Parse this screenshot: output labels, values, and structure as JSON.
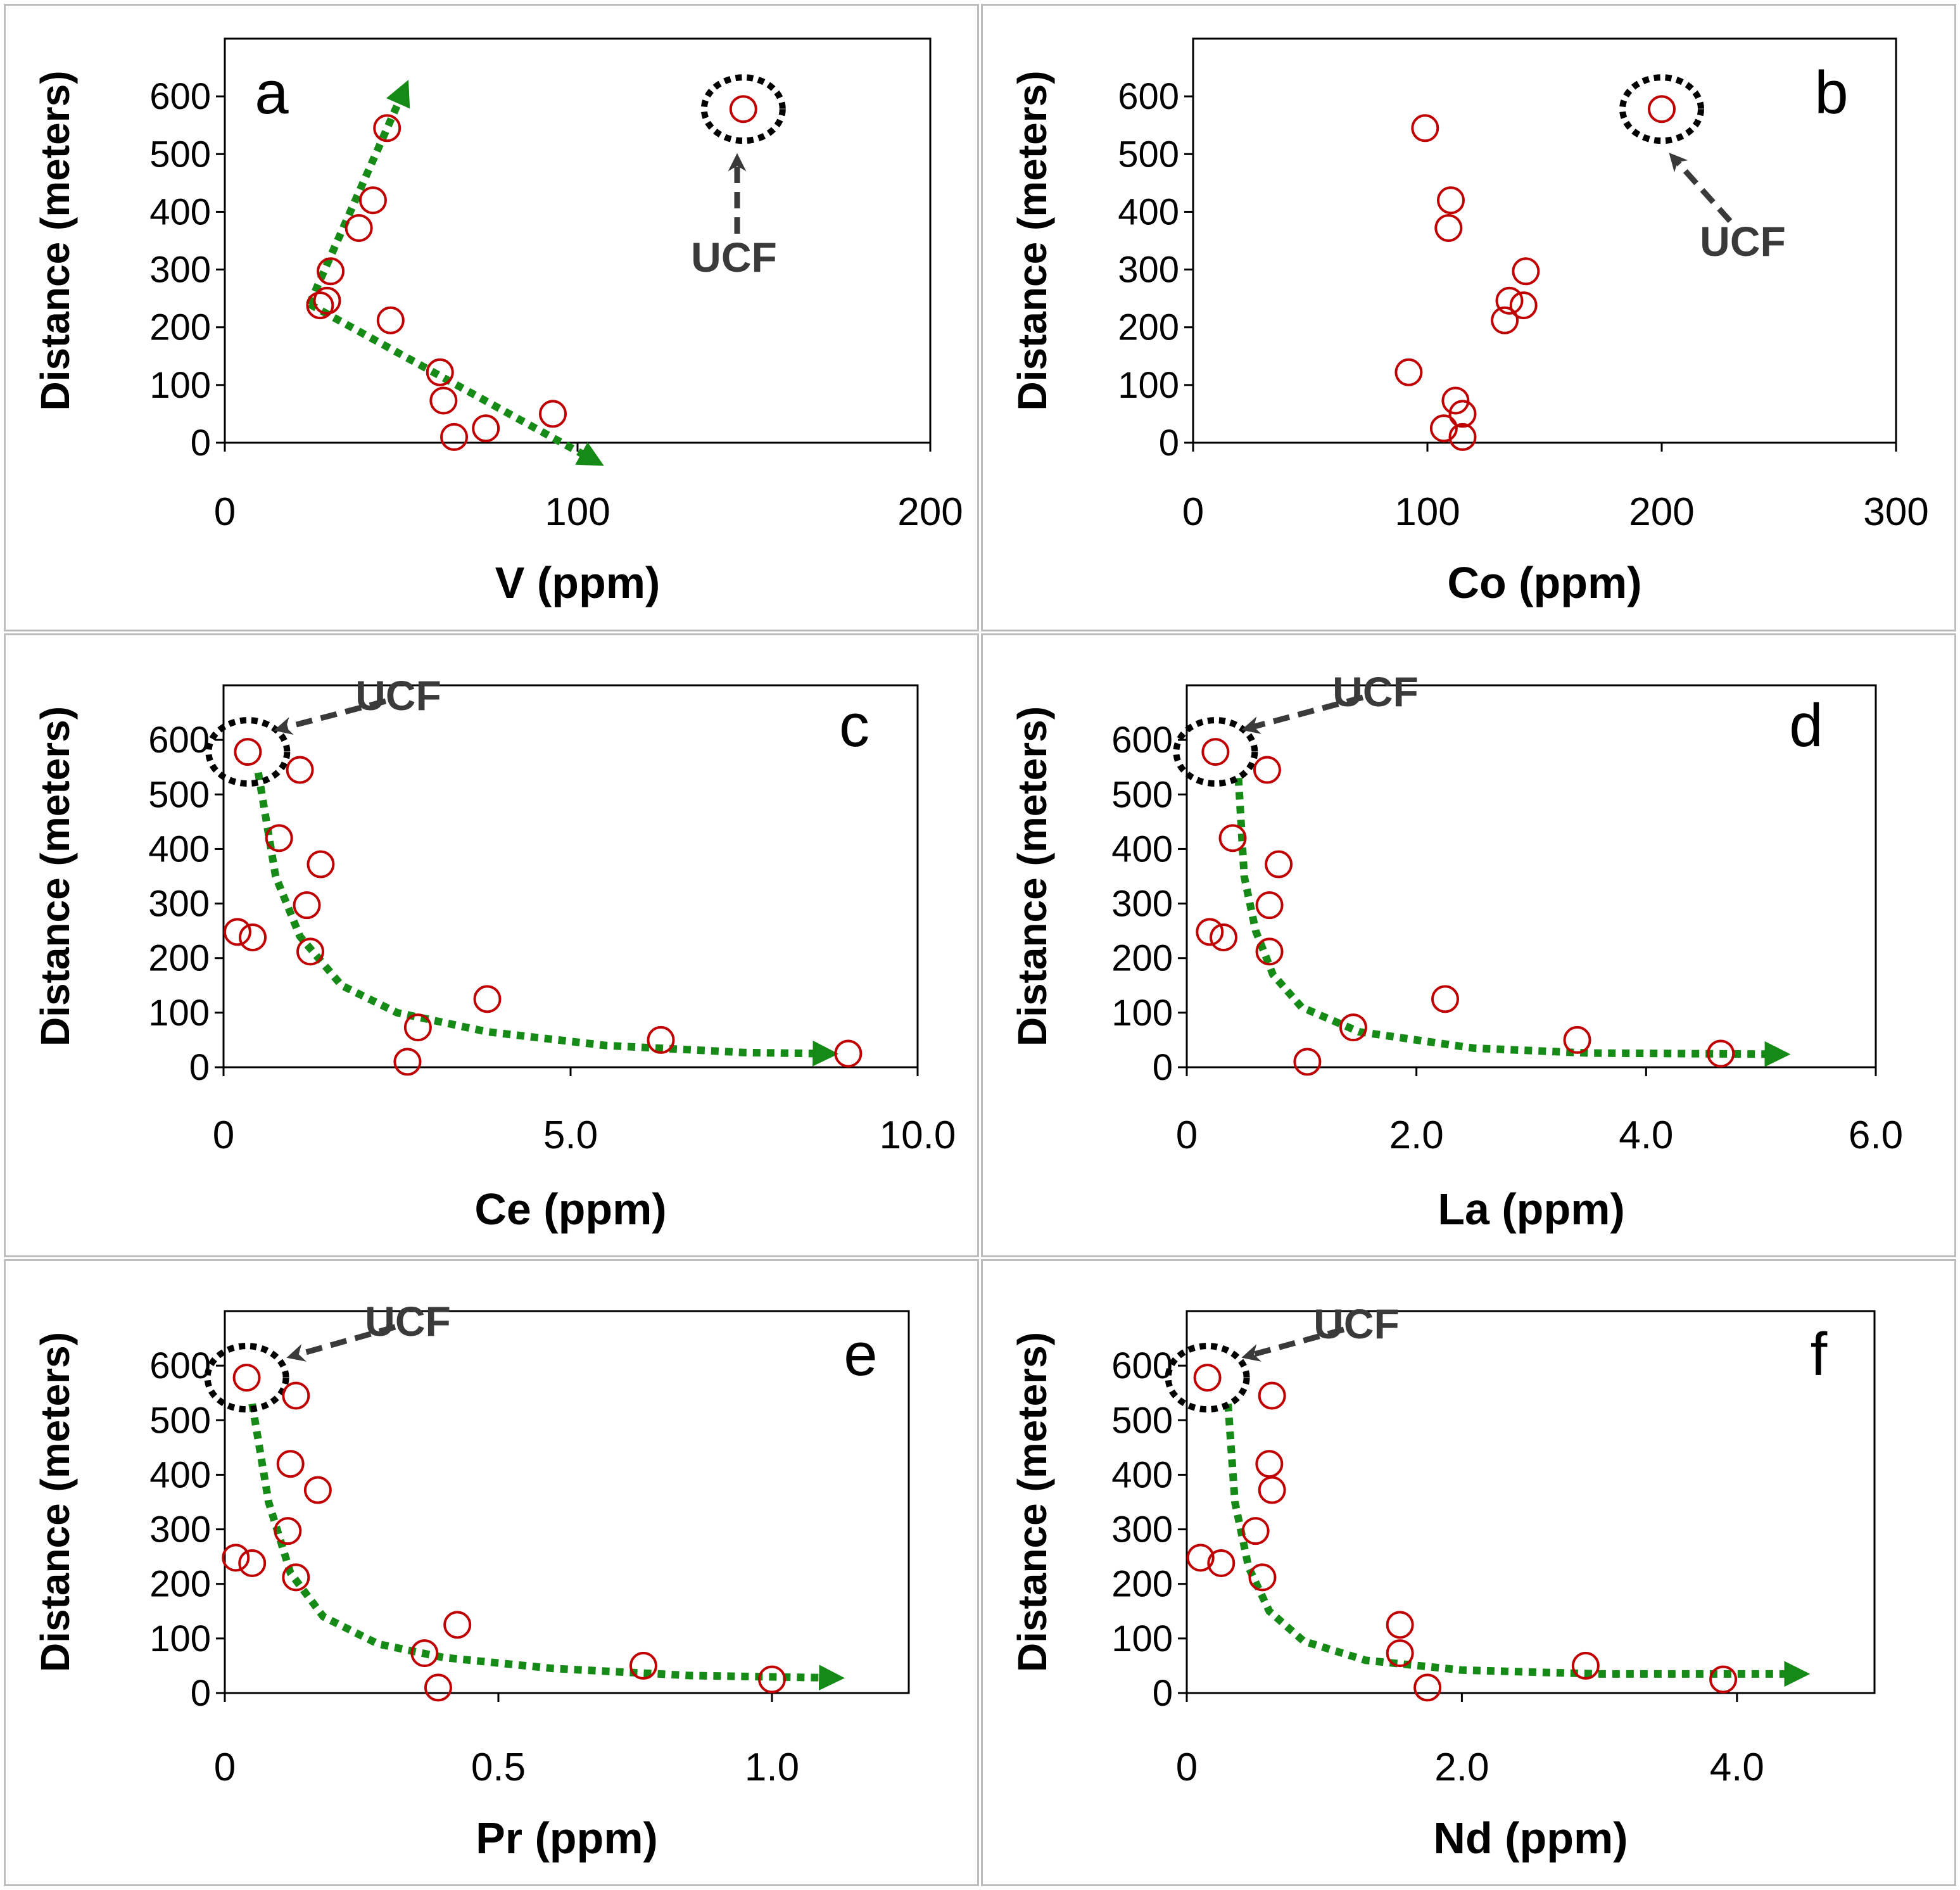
{
  "chart_data": [
    {
      "panel": "a",
      "type": "scatter",
      "xlabel": "V (ppm)",
      "ylabel": "Distance (meters)",
      "xlim": [
        0,
        200
      ],
      "ylim": [
        0,
        700
      ],
      "xticks": [
        0,
        100,
        200
      ],
      "xtick_labels": [
        "0",
        "100",
        "200"
      ],
      "yticks": [
        0,
        100,
        200,
        300,
        400,
        500,
        600
      ],
      "ytick_labels": [
        "0",
        "100",
        "200",
        "300",
        "400",
        "500",
        "600"
      ],
      "points": [
        {
          "x": 147,
          "y": 578
        },
        {
          "x": 46,
          "y": 545
        },
        {
          "x": 42,
          "y": 420
        },
        {
          "x": 38,
          "y": 372
        },
        {
          "x": 30,
          "y": 297
        },
        {
          "x": 27,
          "y": 238
        },
        {
          "x": 29,
          "y": 246
        },
        {
          "x": 47,
          "y": 212
        },
        {
          "x": 61,
          "y": 122
        },
        {
          "x": 62,
          "y": 73
        },
        {
          "x": 93,
          "y": 50
        },
        {
          "x": 74,
          "y": 25
        },
        {
          "x": 65,
          "y": 10
        }
      ],
      "ucf_point": {
        "x": 147,
        "y": 578
      },
      "ucf_label": "UCF",
      "trend": [
        {
          "points": [
            [
              24,
              240
            ],
            [
              50,
              600
            ]
          ],
          "arrow": true
        },
        {
          "points": [
            [
              24,
              240
            ],
            [
              103,
              -25
            ]
          ],
          "arrow": true
        }
      ]
    },
    {
      "panel": "b",
      "type": "scatter",
      "xlabel": "Co (ppm)",
      "ylabel": "Distance (meters)",
      "xlim": [
        0,
        300
      ],
      "ylim": [
        0,
        700
      ],
      "xticks": [
        0,
        100,
        200,
        300
      ],
      "xtick_labels": [
        "0",
        "100",
        "200",
        "300"
      ],
      "yticks": [
        0,
        100,
        200,
        300,
        400,
        500,
        600
      ],
      "ytick_labels": [
        "0",
        "100",
        "200",
        "300",
        "400",
        "500",
        "600"
      ],
      "points": [
        {
          "x": 200,
          "y": 578
        },
        {
          "x": 99,
          "y": 545
        },
        {
          "x": 110,
          "y": 420
        },
        {
          "x": 109,
          "y": 372
        },
        {
          "x": 142,
          "y": 297
        },
        {
          "x": 135,
          "y": 246
        },
        {
          "x": 141,
          "y": 238
        },
        {
          "x": 133,
          "y": 212
        },
        {
          "x": 92,
          "y": 122
        },
        {
          "x": 112,
          "y": 73
        },
        {
          "x": 115,
          "y": 50
        },
        {
          "x": 107,
          "y": 25
        },
        {
          "x": 115,
          "y": 10
        }
      ],
      "ucf_point": {
        "x": 200,
        "y": 578
      },
      "ucf_label": "UCF",
      "trend": []
    },
    {
      "panel": "c",
      "type": "scatter",
      "xlabel": "Ce (ppm)",
      "ylabel": "Distance (meters)",
      "xlim": [
        0,
        10
      ],
      "ylim": [
        0,
        700
      ],
      "xticks": [
        0,
        5,
        10
      ],
      "xtick_labels": [
        "0",
        "5.0",
        "10.0"
      ],
      "yticks": [
        0,
        100,
        200,
        300,
        400,
        500,
        600
      ],
      "ytick_labels": [
        "0",
        "100",
        "200",
        "300",
        "400",
        "500",
        "600"
      ],
      "points": [
        {
          "x": 0.35,
          "y": 578
        },
        {
          "x": 1.1,
          "y": 545
        },
        {
          "x": 0.8,
          "y": 420
        },
        {
          "x": 1.4,
          "y": 372
        },
        {
          "x": 1.2,
          "y": 297
        },
        {
          "x": 0.2,
          "y": 248
        },
        {
          "x": 0.42,
          "y": 238
        },
        {
          "x": 1.25,
          "y": 212
        },
        {
          "x": 3.8,
          "y": 125
        },
        {
          "x": 2.8,
          "y": 73
        },
        {
          "x": 6.3,
          "y": 50
        },
        {
          "x": 9.0,
          "y": 25
        },
        {
          "x": 2.65,
          "y": 10
        }
      ],
      "ucf_point": {
        "x": 0.35,
        "y": 578
      },
      "ucf_label": "UCF",
      "trend": [
        {
          "points": [
            [
              0.5,
              540
            ],
            [
              0.75,
              350
            ],
            [
              1.1,
              240
            ],
            [
              1.7,
              150
            ],
            [
              2.5,
              100
            ],
            [
              3.8,
              65
            ],
            [
              5.5,
              40
            ],
            [
              7.5,
              27
            ],
            [
              8.6,
              25
            ]
          ],
          "arrow": true
        }
      ]
    },
    {
      "panel": "d",
      "type": "scatter",
      "xlabel": "La (ppm)",
      "ylabel": "Distance (meters)",
      "xlim": [
        0,
        6
      ],
      "ylim": [
        0,
        700
      ],
      "xticks": [
        0,
        2,
        4,
        6
      ],
      "xtick_labels": [
        "0",
        "2.0",
        "4.0",
        "6.0"
      ],
      "yticks": [
        0,
        100,
        200,
        300,
        400,
        500,
        600
      ],
      "ytick_labels": [
        "0",
        "100",
        "200",
        "300",
        "400",
        "500",
        "600"
      ],
      "points": [
        {
          "x": 0.25,
          "y": 578
        },
        {
          "x": 0.7,
          "y": 545
        },
        {
          "x": 0.4,
          "y": 420
        },
        {
          "x": 0.8,
          "y": 372
        },
        {
          "x": 0.72,
          "y": 297
        },
        {
          "x": 0.2,
          "y": 248
        },
        {
          "x": 0.32,
          "y": 238
        },
        {
          "x": 0.72,
          "y": 212
        },
        {
          "x": 2.25,
          "y": 125
        },
        {
          "x": 1.45,
          "y": 73
        },
        {
          "x": 3.4,
          "y": 50
        },
        {
          "x": 4.65,
          "y": 25
        },
        {
          "x": 1.05,
          "y": 10
        }
      ],
      "ucf_point": {
        "x": 0.25,
        "y": 578
      },
      "ucf_label": "UCF",
      "trend": [
        {
          "points": [
            [
              0.45,
              530
            ],
            [
              0.5,
              350
            ],
            [
              0.6,
              250
            ],
            [
              0.75,
              170
            ],
            [
              1.0,
              110
            ],
            [
              1.5,
              65
            ],
            [
              2.5,
              35
            ],
            [
              3.5,
              26
            ],
            [
              5.1,
              24
            ]
          ],
          "arrow": true
        }
      ]
    },
    {
      "panel": "e",
      "type": "scatter",
      "xlabel": "Pr (ppm)",
      "ylabel": "Distance (meters)",
      "xlim": [
        0,
        1.25
      ],
      "ylim": [
        0,
        700
      ],
      "xticks": [
        0,
        0.5,
        1.0
      ],
      "xtick_labels": [
        "0",
        "0.5",
        "1.0"
      ],
      "yticks": [
        0,
        100,
        200,
        300,
        400,
        500,
        600
      ],
      "ytick_labels": [
        "0",
        "100",
        "200",
        "300",
        "400",
        "500",
        "600"
      ],
      "points": [
        {
          "x": 0.04,
          "y": 578
        },
        {
          "x": 0.13,
          "y": 545
        },
        {
          "x": 0.12,
          "y": 420
        },
        {
          "x": 0.17,
          "y": 372
        },
        {
          "x": 0.115,
          "y": 297
        },
        {
          "x": 0.02,
          "y": 248
        },
        {
          "x": 0.05,
          "y": 238
        },
        {
          "x": 0.13,
          "y": 212
        },
        {
          "x": 0.425,
          "y": 125
        },
        {
          "x": 0.365,
          "y": 73
        },
        {
          "x": 0.765,
          "y": 50
        },
        {
          "x": 1.0,
          "y": 25
        },
        {
          "x": 0.39,
          "y": 10
        }
      ],
      "ucf_point": {
        "x": 0.04,
        "y": 578
      },
      "ucf_label": "UCF",
      "trend": [
        {
          "points": [
            [
              0.05,
              530
            ],
            [
              0.08,
              350
            ],
            [
              0.12,
              220
            ],
            [
              0.18,
              140
            ],
            [
              0.28,
              90
            ],
            [
              0.4,
              65
            ],
            [
              0.6,
              45
            ],
            [
              0.85,
              32
            ],
            [
              1.1,
              28
            ]
          ],
          "arrow": true
        }
      ]
    },
    {
      "panel": "f",
      "type": "scatter",
      "xlabel": "Nd (ppm)",
      "ylabel": "Distance (meters)",
      "xlim": [
        0,
        5
      ],
      "ylim": [
        0,
        700
      ],
      "xticks": [
        0,
        2,
        4
      ],
      "xtick_labels": [
        "0",
        "2.0",
        "4.0"
      ],
      "yticks": [
        0,
        100,
        200,
        300,
        400,
        500,
        600
      ],
      "ytick_labels": [
        "0",
        "100",
        "200",
        "300",
        "400",
        "500",
        "600"
      ],
      "points": [
        {
          "x": 0.15,
          "y": 578
        },
        {
          "x": 0.62,
          "y": 545
        },
        {
          "x": 0.6,
          "y": 420
        },
        {
          "x": 0.62,
          "y": 372
        },
        {
          "x": 0.5,
          "y": 297
        },
        {
          "x": 0.1,
          "y": 248
        },
        {
          "x": 0.25,
          "y": 238
        },
        {
          "x": 0.55,
          "y": 212
        },
        {
          "x": 1.55,
          "y": 125
        },
        {
          "x": 1.55,
          "y": 73
        },
        {
          "x": 2.9,
          "y": 50
        },
        {
          "x": 3.9,
          "y": 25
        },
        {
          "x": 1.75,
          "y": 10
        }
      ],
      "ucf_point": {
        "x": 0.15,
        "y": 578
      },
      "ucf_label": "UCF",
      "trend": [
        {
          "points": [
            [
              0.3,
              530
            ],
            [
              0.35,
              350
            ],
            [
              0.45,
              230
            ],
            [
              0.6,
              150
            ],
            [
              0.85,
              95
            ],
            [
              1.3,
              60
            ],
            [
              2.0,
              42
            ],
            [
              3.0,
              35
            ],
            [
              4.4,
              35
            ]
          ],
          "arrow": true
        }
      ]
    }
  ],
  "colors": {
    "point": "#c00000",
    "trend": "#168a16",
    "ucf_ring": "#000000",
    "ucf_arrow": "#3a3a3a"
  }
}
